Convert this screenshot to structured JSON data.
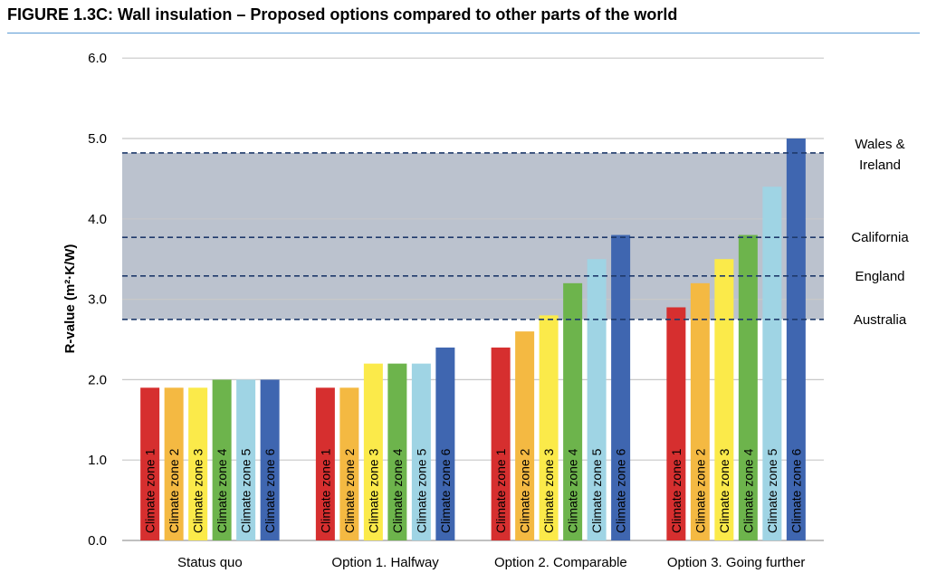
{
  "chart_data": {
    "type": "bar",
    "title": "FIGURE 1.3C: Wall insulation – Proposed options compared to other parts of the world",
    "ylabel": "R-value (m²·K/W)",
    "ylim": [
      0,
      6
    ],
    "yticks": [
      "0.0",
      "1.0",
      "2.0",
      "3.0",
      "4.0",
      "5.0",
      "6.0"
    ],
    "grid": true,
    "categories": [
      "Status quo",
      "Option 1. Halfway",
      "Option 2. Comparable",
      "Option 3. Going further"
    ],
    "series": [
      {
        "name": "Climate zone 1",
        "color": "#d62f2f",
        "values": [
          1.9,
          1.9,
          2.4,
          2.9
        ]
      },
      {
        "name": "Climate zone 2",
        "color": "#f4b942",
        "values": [
          1.9,
          1.9,
          2.6,
          3.2
        ]
      },
      {
        "name": "Climate zone 3",
        "color": "#fbea4a",
        "values": [
          1.9,
          2.2,
          2.8,
          3.5
        ]
      },
      {
        "name": "Climate zone 4",
        "color": "#6db44c",
        "values": [
          2.0,
          2.2,
          3.2,
          3.8
        ]
      },
      {
        "name": "Climate zone 5",
        "color": "#9fd4e4",
        "values": [
          2.0,
          2.2,
          3.5,
          4.4
        ]
      },
      {
        "name": "Climate zone 6",
        "color": "#3f66b0",
        "values": [
          2.0,
          2.4,
          3.8,
          5.0
        ]
      }
    ],
    "shaded_band": {
      "from": 2.75,
      "to": 4.82,
      "color": "#b7bfcb"
    },
    "reference_lines": [
      {
        "label": "Wales & Ireland",
        "label_lines": [
          "Wales &",
          "Ireland"
        ],
        "value": 4.82
      },
      {
        "label": "California",
        "label_lines": [
          "California"
        ],
        "value": 3.77
      },
      {
        "label": "England",
        "label_lines": [
          "England"
        ],
        "value": 3.29
      },
      {
        "label": "Australia",
        "label_lines": [
          "Australia"
        ],
        "value": 2.75
      }
    ]
  }
}
